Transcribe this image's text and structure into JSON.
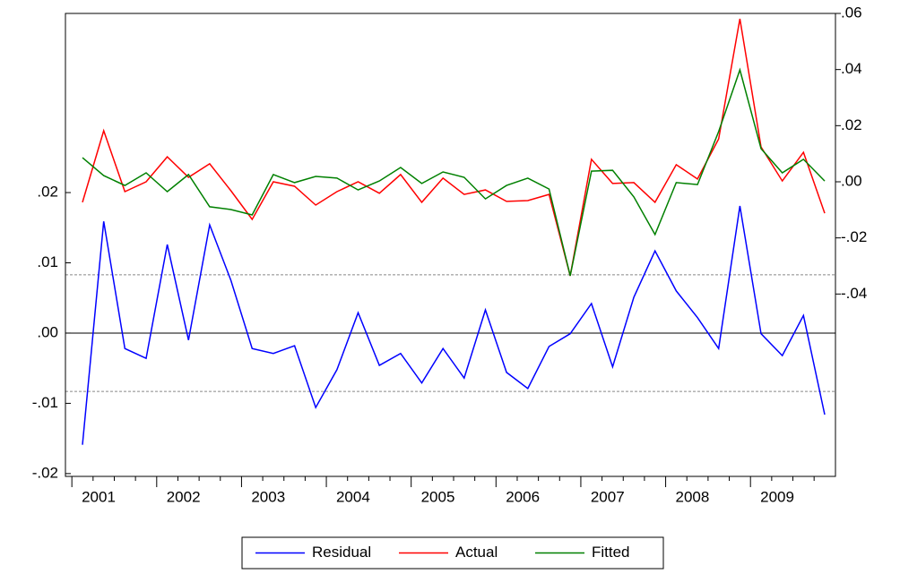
{
  "chart_data": {
    "type": "line",
    "categories": [
      "2001",
      null,
      null,
      null,
      "2002",
      null,
      null,
      null,
      "2003",
      null,
      null,
      null,
      "2004",
      null,
      null,
      null,
      "2005",
      null,
      null,
      null,
      "2006",
      null,
      null,
      null,
      "2007",
      null,
      null,
      null,
      "2008",
      null,
      null,
      null,
      "2009",
      null,
      null,
      null
    ],
    "series": [
      {
        "name": "Residual",
        "color": "#0000ff",
        "axis": "y",
        "values": [
          -0.0159,
          0.0159,
          -0.0022,
          -0.0036,
          0.0126,
          -0.001,
          0.0154,
          0.0075,
          -0.0022,
          -0.0029,
          -0.0018,
          -0.0106,
          -0.0052,
          0.0029,
          -0.0046,
          -0.0029,
          -0.0071,
          -0.0022,
          -0.0064,
          0.0033,
          -0.0056,
          -0.0079,
          -0.0019,
          -0.0001,
          0.0042,
          -0.0048,
          0.0051,
          0.0117,
          0.006,
          0.0022,
          -0.0022,
          0.0181,
          -0.0001,
          -0.0032,
          0.0025,
          -0.0116
        ]
      },
      {
        "name": "Actual",
        "color": "#ff0000",
        "axis": "y2",
        "values": [
          -0.0073,
          0.0182,
          -0.0035,
          0.0,
          0.0089,
          0.0016,
          0.0064,
          -0.0032,
          -0.0134,
          0.0,
          -0.0016,
          -0.0083,
          -0.0035,
          0.0,
          -0.0041,
          0.0026,
          -0.0073,
          0.0013,
          -0.0045,
          -0.0029,
          -0.007,
          -0.0067,
          -0.0045,
          -0.0335,
          0.008,
          -0.0006,
          -0.0003,
          -0.0073,
          0.0061,
          0.001,
          0.0153,
          0.0581,
          0.0124,
          0.0003,
          0.0105,
          -0.0112
        ]
      },
      {
        "name": "Fitted",
        "color": "#008000",
        "axis": "y2",
        "values": [
          0.0086,
          0.0022,
          -0.0013,
          0.0032,
          -0.0035,
          0.0026,
          -0.0089,
          -0.0099,
          -0.0118,
          0.0026,
          -0.0003,
          0.0019,
          0.0013,
          -0.0029,
          0.0003,
          0.0051,
          -0.0006,
          0.0035,
          0.0016,
          -0.0061,
          -0.0013,
          0.0013,
          -0.0026,
          -0.0335,
          0.0038,
          0.0041,
          -0.0054,
          -0.0188,
          -0.0003,
          -0.001,
          0.0179,
          0.0399,
          0.0118,
          0.0032,
          0.008,
          0.0003
        ]
      }
    ],
    "ylim": [
      -0.0204,
      0.0455
    ],
    "yticks": [
      {
        "value": -0.02,
        "label": "-.02"
      },
      {
        "value": -0.01,
        "label": "-.01"
      },
      {
        "value": 0,
        "label": ".00"
      },
      {
        "value": 0.01,
        "label": ".01"
      },
      {
        "value": 0.02,
        "label": ".02"
      }
    ],
    "y2lim": [
      -0.105,
      0.06
    ],
    "y2ticks": [
      {
        "value": -0.04,
        "label": "-.04"
      },
      {
        "value": -0.02,
        "label": "-.02"
      },
      {
        "value": 0,
        "label": ".00"
      },
      {
        "value": 0.02,
        "label": ".02"
      },
      {
        "value": 0.04,
        "label": ".04"
      },
      {
        "value": 0.06,
        "label": ".06"
      }
    ],
    "zero_line": 0,
    "ref_lines": [
      0.0083,
      -0.0083
    ],
    "legend": "bottom"
  }
}
